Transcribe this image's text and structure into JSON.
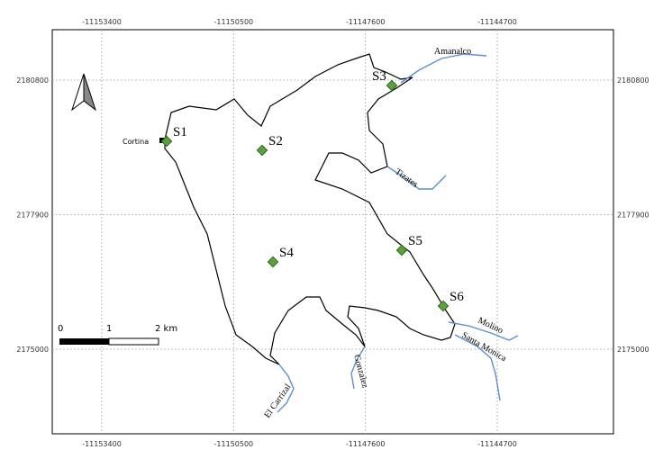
{
  "map": {
    "xlim": [
      -11154490,
      -11142143
    ],
    "ylim": [
      2173176,
      2181886
    ],
    "x_ticks": [
      -11153400,
      -11150500,
      -11147600,
      -11144700
    ],
    "y_ticks": [
      2180800,
      2177900,
      2175000
    ],
    "stations": [
      "S1",
      "S2",
      "S3",
      "S4",
      "S5",
      "S6"
    ],
    "place": "Cortina",
    "rivers": [
      "Amanalco",
      "Tizates",
      "Molino",
      "Santa Monica",
      "El Carrizal",
      "Gonzalez"
    ],
    "scale_bar": [
      "0",
      "1",
      "2 km"
    ]
  }
}
